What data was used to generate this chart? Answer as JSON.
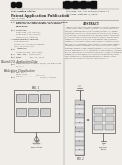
{
  "bg_color": "#f0ede8",
  "text_dark": "#2a2a2a",
  "text_mid": "#444444",
  "text_light": "#666666",
  "barcode_color": "#111111",
  "line_color": "#888888",
  "box_color": "#cccccc",
  "box_edge": "#555555"
}
